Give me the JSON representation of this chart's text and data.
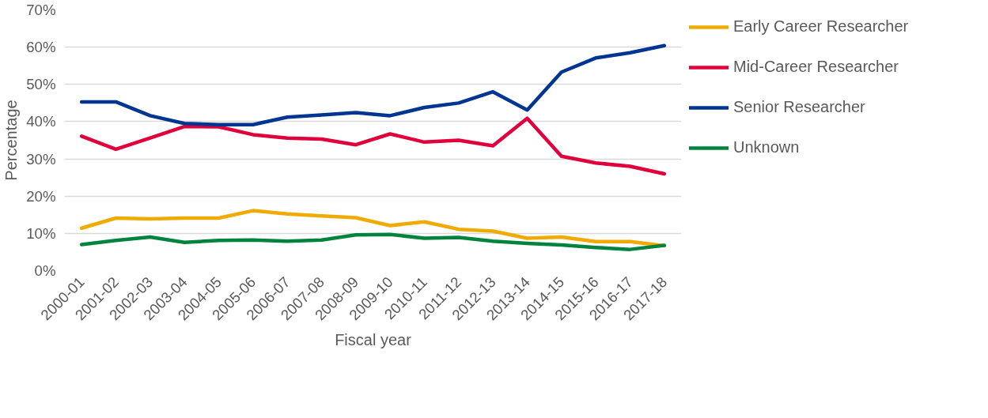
{
  "chart_data": {
    "type": "line",
    "xlabel": "Fiscal year",
    "ylabel": "Percentage",
    "categories": [
      "2000-01",
      "2001-02",
      "2002-03",
      "2003-04",
      "2004-05",
      "2005-06",
      "2006-07",
      "2007-08",
      "2008-09",
      "2009-10",
      "2010-11",
      "2011-12",
      "2012-13",
      "2013-14",
      "2014-15",
      "2015-16",
      "2016-17",
      "2017-18"
    ],
    "series": [
      {
        "name": "Early Career Researcher",
        "color": "#f0ab00",
        "values": [
          11.4,
          14.1,
          13.9,
          14.1,
          14.1,
          16.1,
          15.2,
          14.7,
          14.2,
          12.1,
          13.1,
          11.1,
          10.6,
          8.7,
          9.0,
          7.8,
          7.8,
          6.7
        ]
      },
      {
        "name": "Mid-Career Researcher",
        "color": "#e0003c",
        "values": [
          36.1,
          32.6,
          35.6,
          38.7,
          38.6,
          36.5,
          35.6,
          35.3,
          33.8,
          36.7,
          34.5,
          35.0,
          33.5,
          40.9,
          30.7,
          28.9,
          28.0,
          26.0
        ]
      },
      {
        "name": "Senior Researcher",
        "color": "#003591",
        "values": [
          45.3,
          45.3,
          41.6,
          39.5,
          39.2,
          39.2,
          41.2,
          41.8,
          42.4,
          41.6,
          43.8,
          45.0,
          48.0,
          43.1,
          53.3,
          57.1,
          58.5,
          60.4
        ]
      },
      {
        "name": "Unknown",
        "color": "#00843d",
        "values": [
          7.0,
          8.1,
          9.0,
          7.6,
          8.1,
          8.2,
          7.9,
          8.2,
          9.6,
          9.7,
          8.7,
          8.9,
          7.9,
          7.3,
          6.9,
          6.2,
          5.7,
          6.8
        ]
      }
    ],
    "ylim": [
      0,
      70
    ],
    "yticks": [
      {
        "value": 0,
        "label": "0%"
      },
      {
        "value": 10,
        "label": "10%"
      },
      {
        "value": 20,
        "label": "20%"
      },
      {
        "value": 30,
        "label": "30%"
      },
      {
        "value": 40,
        "label": "40%"
      },
      {
        "value": 50,
        "label": "50%"
      },
      {
        "value": 60,
        "label": "60%"
      },
      {
        "value": 70,
        "label": "70%"
      }
    ],
    "grid": "y",
    "legend": "right",
    "marker": "none",
    "line_style": "solid"
  }
}
